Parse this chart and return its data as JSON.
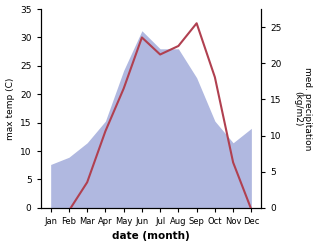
{
  "months": [
    "Jan",
    "Feb",
    "Mar",
    "Apr",
    "May",
    "Jun",
    "Jul",
    "Aug",
    "Sep",
    "Oct",
    "Nov",
    "Dec"
  ],
  "temperature": [
    -0.3,
    -0.5,
    4.5,
    13.5,
    21.0,
    30.0,
    27.0,
    28.5,
    32.5,
    23.0,
    8.0,
    -0.3
  ],
  "precipitation": [
    6.0,
    7.0,
    9.0,
    12.0,
    19.0,
    24.5,
    22.0,
    22.0,
    18.0,
    12.0,
    9.0,
    11.0
  ],
  "temp_color": "#b04050",
  "precip_fill_color": "#b0b8e0",
  "left_ylabel": "max temp (C)",
  "right_ylabel": "med. precipitation\n(kg/m2)",
  "xlabel": "date (month)",
  "left_ylim": [
    0,
    35
  ],
  "right_ylim": [
    0,
    27.5
  ],
  "left_yticks": [
    0,
    5,
    10,
    15,
    20,
    25,
    30,
    35
  ],
  "right_yticks": [
    0,
    5,
    10,
    15,
    20,
    25
  ],
  "background_color": "#ffffff"
}
